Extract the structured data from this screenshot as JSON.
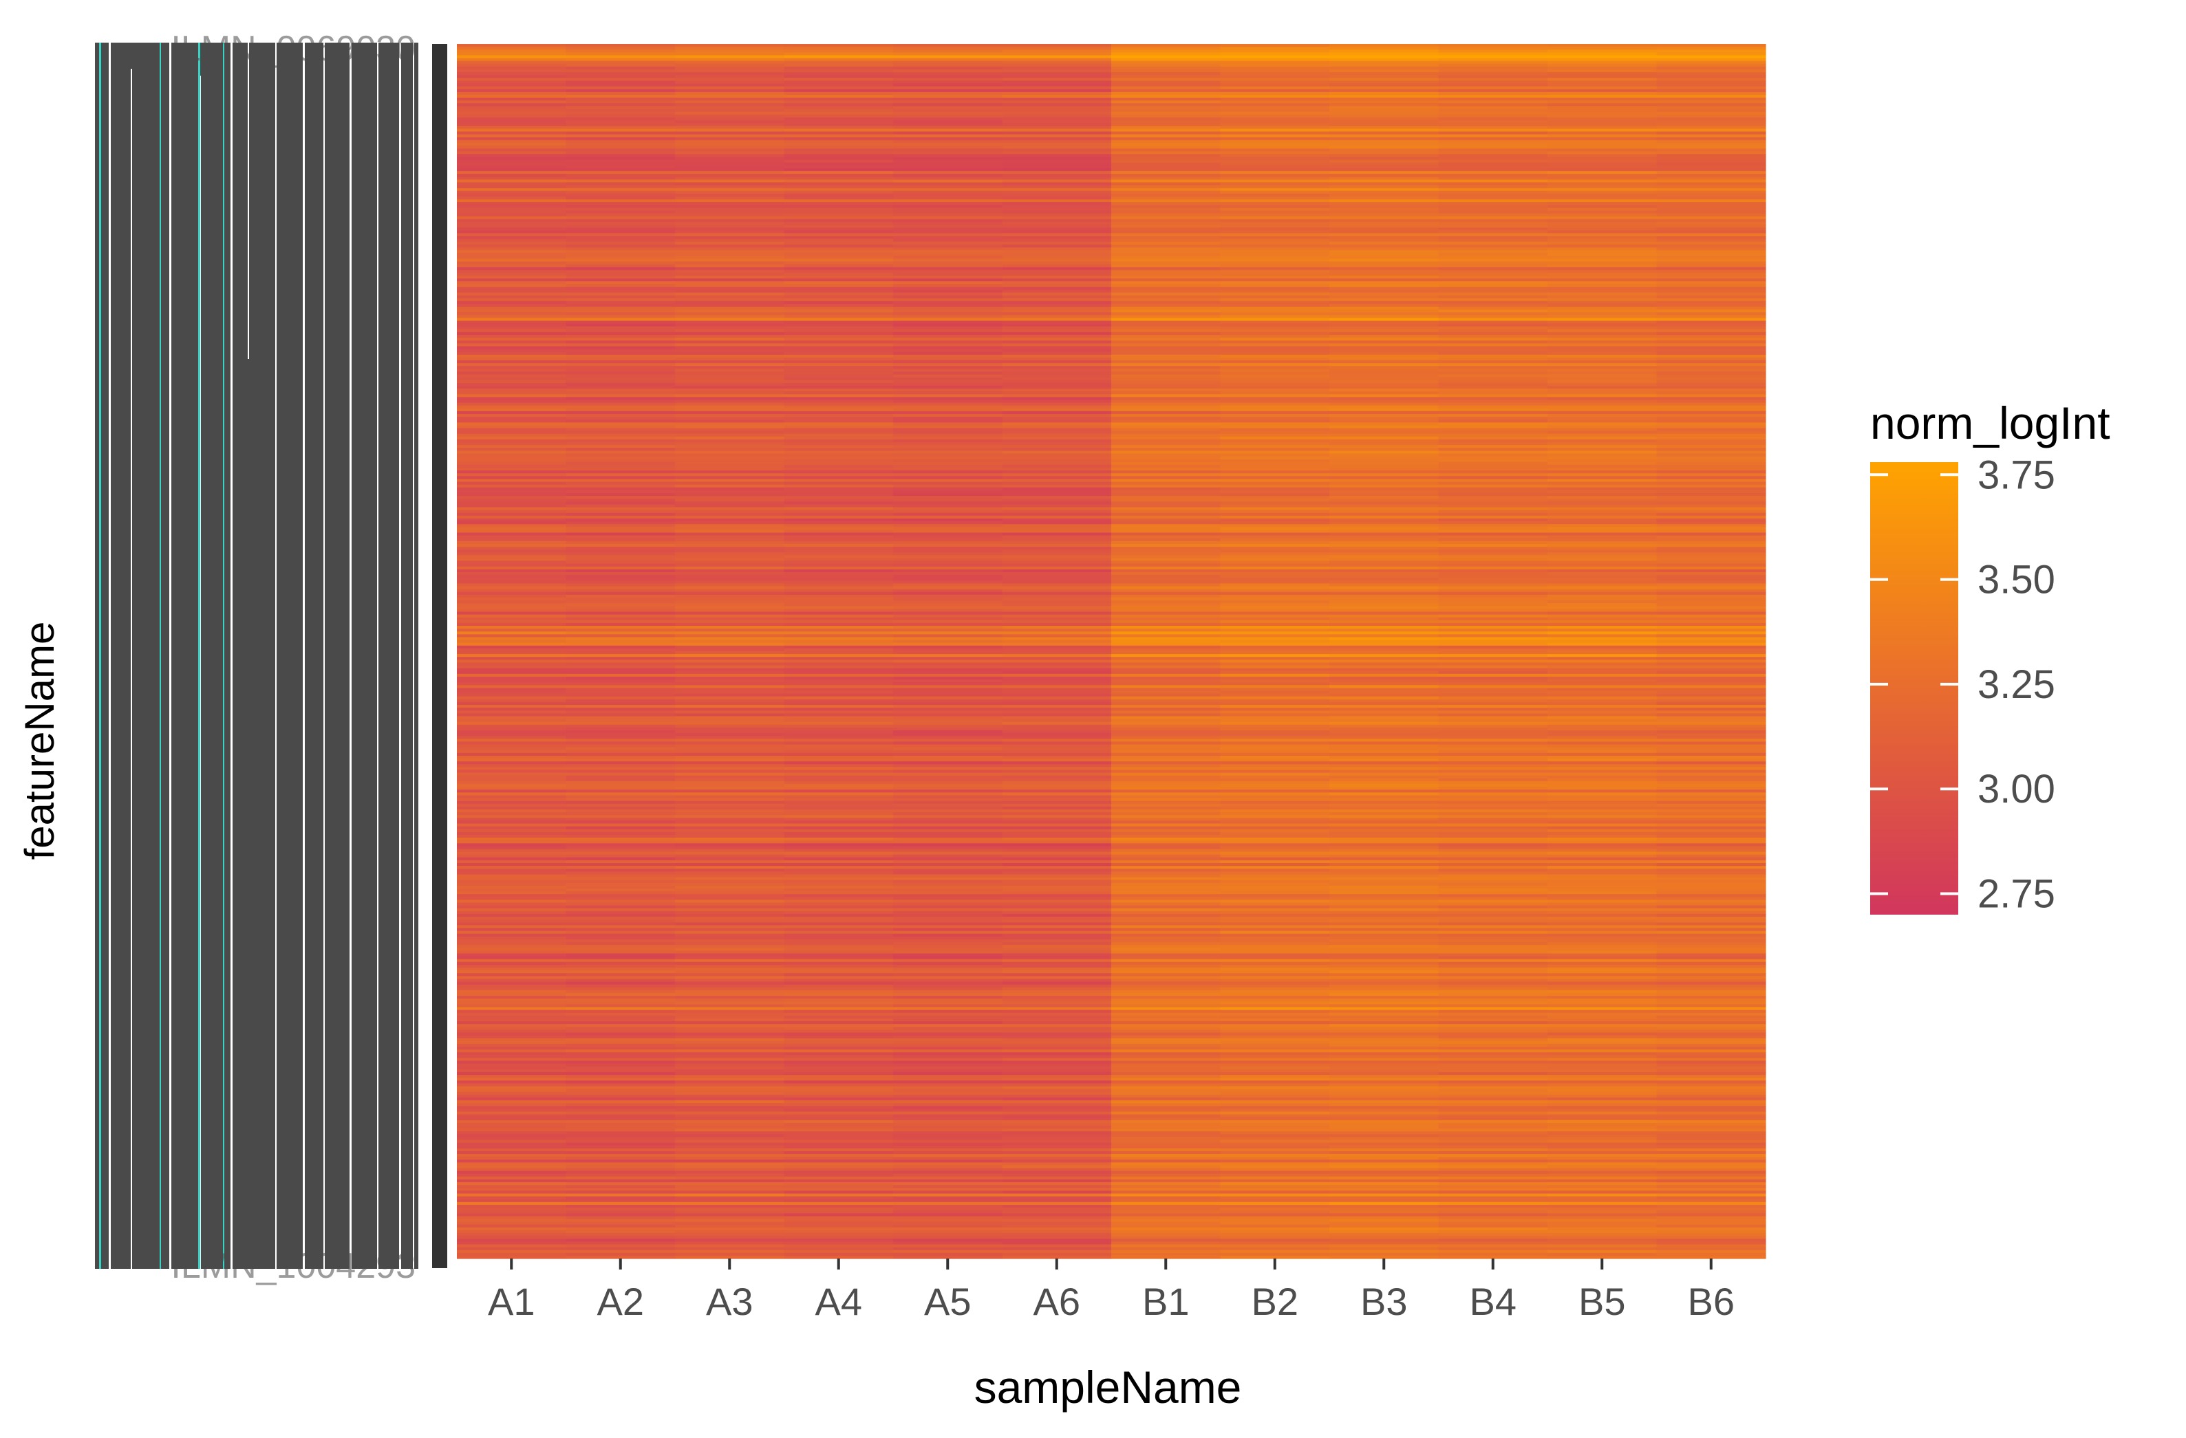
{
  "chart_data": {
    "type": "heatmap",
    "title": "",
    "xlabel": "sampleName",
    "ylabel": "featureName",
    "legend_title": "norm_logInt",
    "legend_placement": "right",
    "x_categories": [
      "A1",
      "A2",
      "A3",
      "A4",
      "A5",
      "A6",
      "B1",
      "B2",
      "B3",
      "B4",
      "B5",
      "B6"
    ],
    "y_first_label": "ILMN_0069030",
    "y_last_label": "ILMN_1004293",
    "color_scale": {
      "low_value": 2.7,
      "high_value": 3.78,
      "low_color": "#d1365d",
      "high_color": "#ffa300",
      "ticks": [
        2.75,
        3.0,
        3.25,
        3.5,
        3.75
      ],
      "tick_labels": [
        "2.75",
        "3.00",
        "3.25",
        "3.50",
        "3.75"
      ]
    },
    "group_means": {
      "A": 3.03,
      "B": 3.24
    },
    "sample_offsets": [
      0.0,
      -0.01,
      0.02,
      0.0,
      -0.02,
      -0.01,
      0.01,
      0.04,
      0.05,
      0.02,
      0.03,
      0.0
    ],
    "row_count": 430,
    "grid": false
  }
}
